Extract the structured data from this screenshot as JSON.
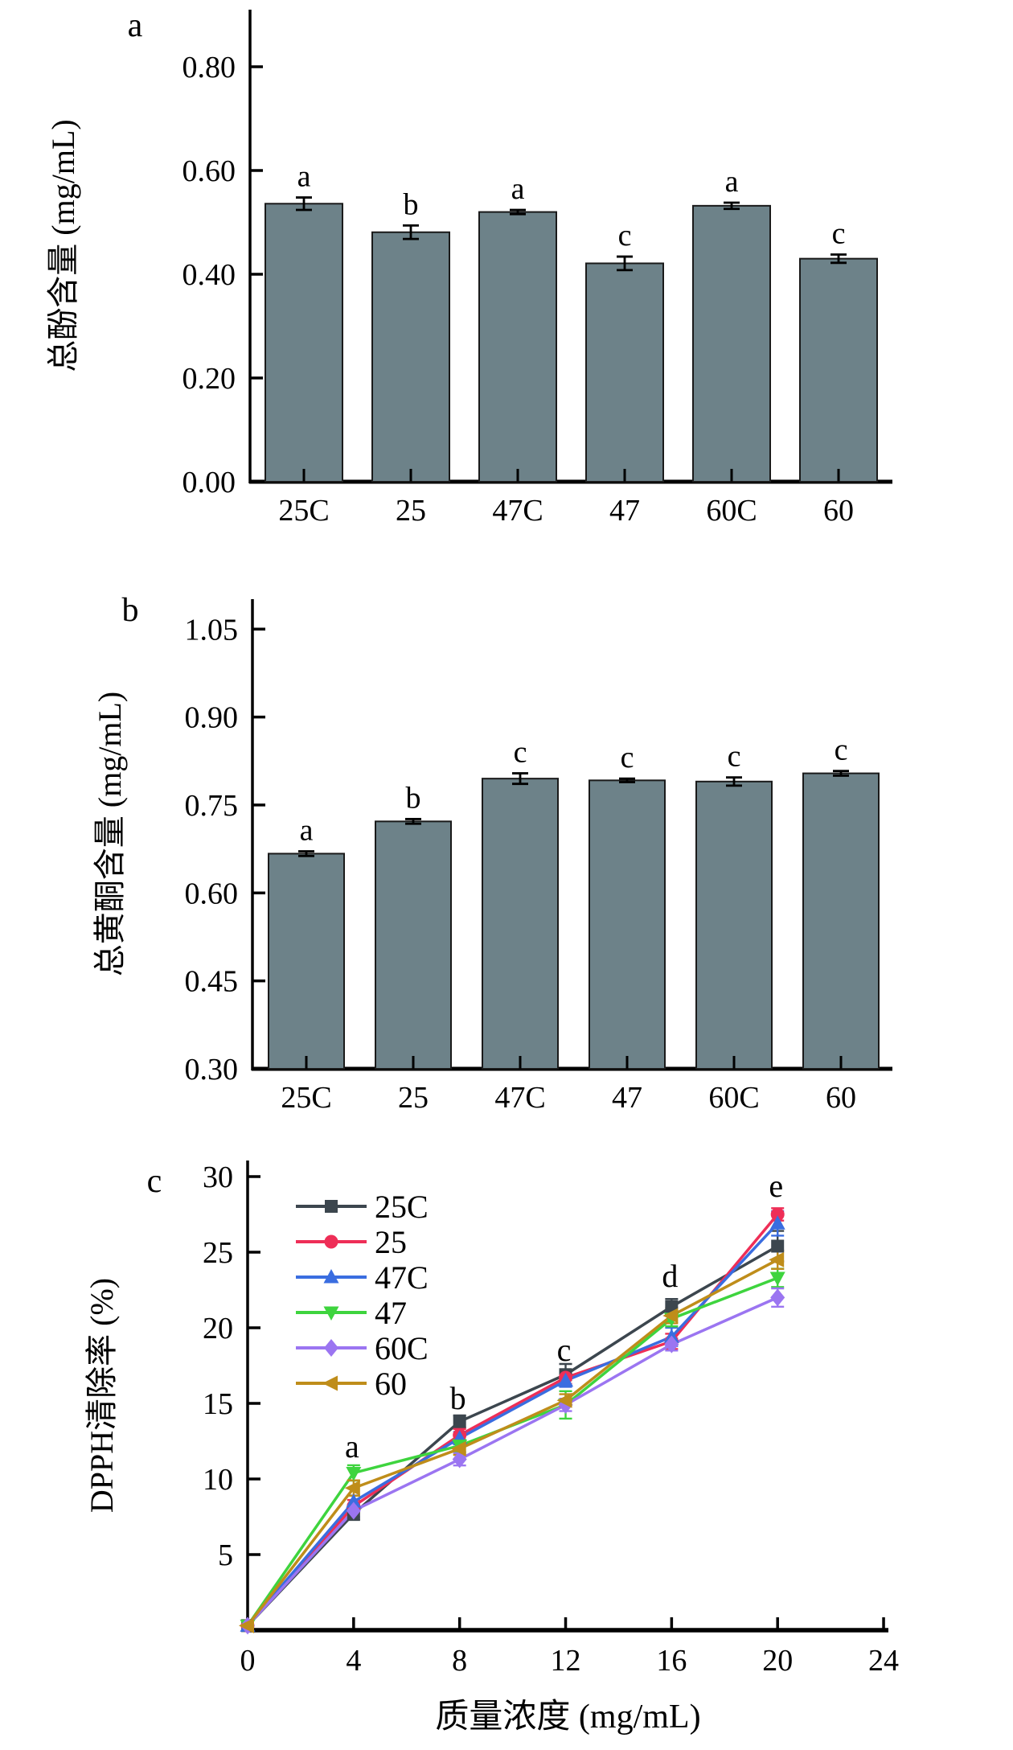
{
  "figure": {
    "background": "#ffffff",
    "bar_fill": "#6d8289",
    "bar_edge": "#1a1a1a",
    "axis_color": "#000000"
  },
  "chart_data": [
    {
      "type": "bar",
      "panel_label": "a",
      "ylabel": "总酚含量 (mg/mL)",
      "categories": [
        "25C",
        "25",
        "47C",
        "47",
        "60C",
        "60"
      ],
      "values": [
        0.536,
        0.481,
        0.52,
        0.421,
        0.532,
        0.43
      ],
      "errors": [
        0.012,
        0.013,
        0.004,
        0.013,
        0.006,
        0.008
      ],
      "sig_letters": [
        "a",
        "b",
        "a",
        "c",
        "a",
        "c"
      ],
      "ytick_values": [
        0.0,
        0.2,
        0.4,
        0.6,
        0.8
      ],
      "ytick_labels": [
        "0.00",
        "0.20",
        "0.40",
        "0.60",
        "0.80"
      ],
      "ylim": [
        0.0,
        0.91
      ],
      "grid": "off",
      "bar_color": "#6d8289"
    },
    {
      "type": "bar",
      "panel_label": "b",
      "ylabel": "总黄酮含量 (mg/mL)",
      "categories": [
        "25C",
        "25",
        "47C",
        "47",
        "60C",
        "60"
      ],
      "values": [
        0.667,
        0.722,
        0.795,
        0.792,
        0.79,
        0.804
      ],
      "errors": [
        0.004,
        0.004,
        0.009,
        0.003,
        0.007,
        0.004
      ],
      "sig_letters": [
        "a",
        "b",
        "c",
        "c",
        "c",
        "c"
      ],
      "ytick_values": [
        0.3,
        0.45,
        0.6,
        0.75,
        0.9,
        1.05
      ],
      "ytick_labels": [
        "0.30",
        "0.45",
        "0.60",
        "0.75",
        "0.90",
        "1.05"
      ],
      "ylim": [
        0.3,
        1.1
      ],
      "grid": "off",
      "bar_color": "#6d8289"
    },
    {
      "type": "line",
      "panel_label": "c",
      "ylabel": "DPPH清除率 (%)",
      "xlabel": "质量浓度 (mg/mL)",
      "x": [
        0,
        4,
        8,
        12,
        16,
        20
      ],
      "xtick_values": [
        0,
        4,
        8,
        12,
        16,
        20,
        24
      ],
      "xtick_labels": [
        "0",
        "4",
        "8",
        "12",
        "16",
        "20",
        "24"
      ],
      "ytick_values": [
        5,
        10,
        15,
        20,
        25,
        30
      ],
      "ytick_labels": [
        "5",
        "10",
        "15",
        "20",
        "25",
        "30"
      ],
      "xlim": [
        0,
        24
      ],
      "ylim": [
        0,
        31
      ],
      "grid": "off",
      "legend_position": "top-left-inside",
      "series": [
        {
          "name": "25C",
          "color": "#3c464e",
          "marker": "square",
          "values": [
            0.3,
            7.7,
            13.8,
            16.9,
            21.4,
            25.4
          ],
          "errors": [
            0,
            0.3,
            0.3,
            0.6,
            0.4,
            0.9
          ]
        },
        {
          "name": "25",
          "color": "#ee2e57",
          "marker": "circle",
          "values": [
            0.3,
            8.2,
            12.9,
            16.7,
            19.1,
            27.5
          ],
          "errors": [
            0,
            0.3,
            0.3,
            0.3,
            0.4,
            0.3
          ]
        },
        {
          "name": "47C",
          "color": "#3a6de0",
          "marker": "triangle-up",
          "values": [
            0.3,
            8.5,
            12.7,
            16.5,
            19.4,
            26.9
          ],
          "errors": [
            0,
            0.3,
            0.3,
            0.3,
            0.5,
            0.7
          ]
        },
        {
          "name": "47",
          "color": "#3ed43e",
          "marker": "triangle-down",
          "values": [
            0.3,
            10.4,
            12.2,
            14.9,
            20.6,
            23.3
          ],
          "errors": [
            0,
            0.4,
            0.3,
            0.8,
            0.4,
            0.5
          ]
        },
        {
          "name": "60C",
          "color": "#9b75f1",
          "marker": "diamond",
          "values": [
            0.3,
            7.9,
            11.3,
            14.9,
            18.9,
            22.0
          ],
          "errors": [
            0,
            0.3,
            0.3,
            0.3,
            0.3,
            0.5
          ]
        },
        {
          "name": "60",
          "color": "#bf8d1a",
          "marker": "triangle-left",
          "values": [
            0.3,
            9.4,
            12.0,
            15.2,
            20.8,
            24.5
          ],
          "errors": [
            0,
            0.4,
            0.3,
            0.3,
            0.4,
            0.5
          ]
        }
      ],
      "annotations": [
        {
          "text": "a",
          "at_x": 4
        },
        {
          "text": "b",
          "at_x": 8
        },
        {
          "text": "c",
          "at_x": 12
        },
        {
          "text": "d",
          "at_x": 16
        },
        {
          "text": "e",
          "at_x": 20
        }
      ]
    }
  ]
}
